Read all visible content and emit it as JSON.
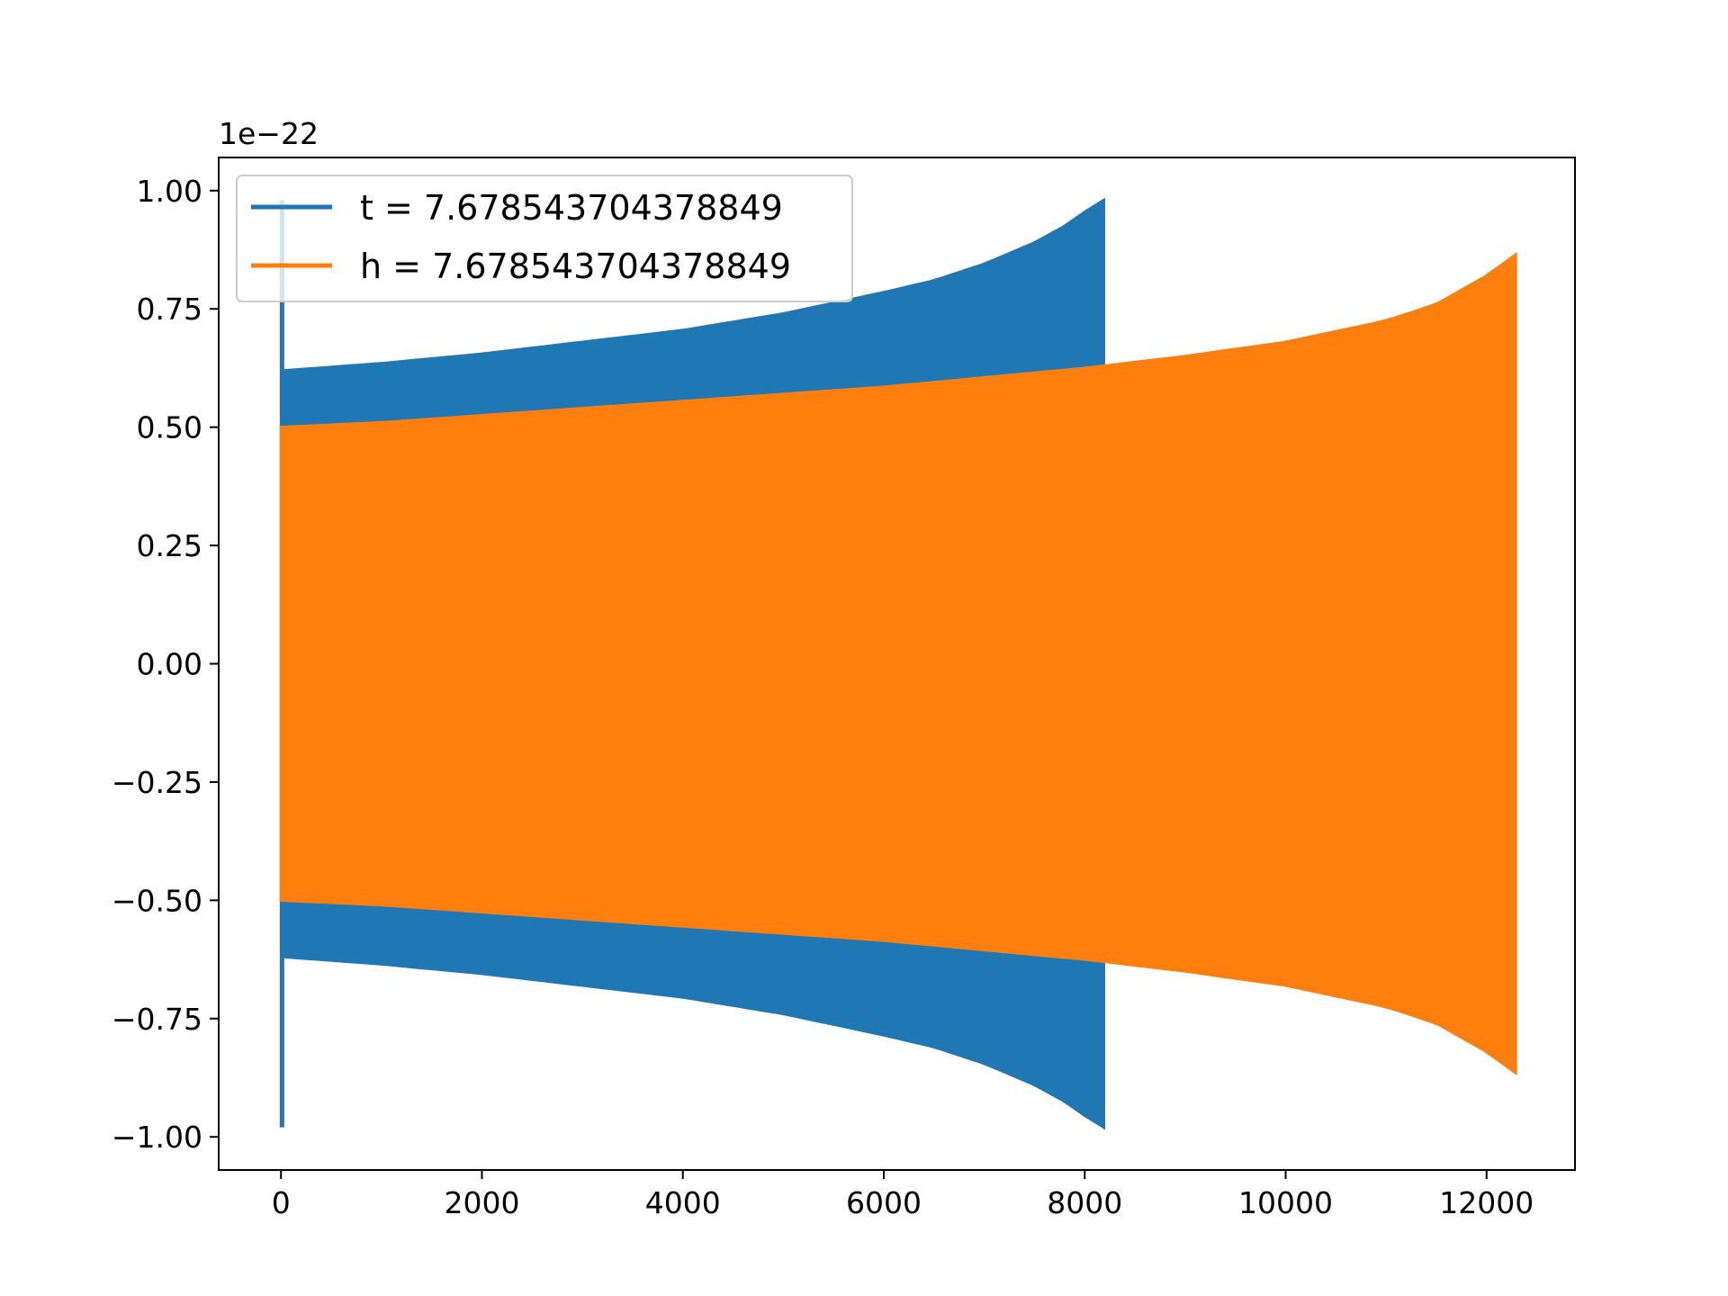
{
  "chart_data": {
    "type": "line",
    "title": "",
    "xlabel": "",
    "ylabel": "",
    "y_offset_label": "1e−22",
    "xlim": [
      -620,
      12880
    ],
    "ylim": [
      -1.07,
      1.07
    ],
    "x_ticks": [
      0,
      2000,
      4000,
      6000,
      8000,
      10000,
      12000
    ],
    "x_tick_labels": [
      "0",
      "2000",
      "4000",
      "6000",
      "8000",
      "10000",
      "12000"
    ],
    "y_ticks": [
      1.0,
      0.75,
      0.5,
      0.25,
      0.0,
      -0.25,
      -0.5,
      -0.75,
      -1.0
    ],
    "y_tick_labels": [
      "1.00",
      "0.75",
      "0.50",
      "0.25",
      "0.00",
      "−0.25",
      "−0.50",
      "−0.75",
      "−1.00"
    ],
    "grid": false,
    "legend_position": "upper-left",
    "series": [
      {
        "name": "t = 7.678543704378849",
        "color": "#1f77b4",
        "end_x": 8190,
        "spike": {
          "x": 10,
          "peak": 0.98
        },
        "envelope": {
          "x": [
            40,
            1000,
            2000,
            3000,
            4000,
            5000,
            6000,
            6500,
            7000,
            7500,
            7800,
            8000,
            8190
          ],
          "amplitude": [
            0.62,
            0.635,
            0.655,
            0.68,
            0.705,
            0.74,
            0.785,
            0.81,
            0.845,
            0.89,
            0.925,
            0.955,
            0.98
          ]
        }
      },
      {
        "name": "h = 7.678543704378849",
        "color": "#ff7f0e",
        "end_x": 12290,
        "envelope": {
          "x": [
            0,
            1000,
            2000,
            3000,
            4000,
            5000,
            6000,
            7000,
            8000,
            9000,
            10000,
            11000,
            11500,
            12000,
            12290
          ],
          "amplitude": [
            0.5,
            0.51,
            0.525,
            0.54,
            0.555,
            0.57,
            0.585,
            0.605,
            0.625,
            0.65,
            0.68,
            0.725,
            0.76,
            0.82,
            0.865
          ]
        }
      }
    ]
  }
}
